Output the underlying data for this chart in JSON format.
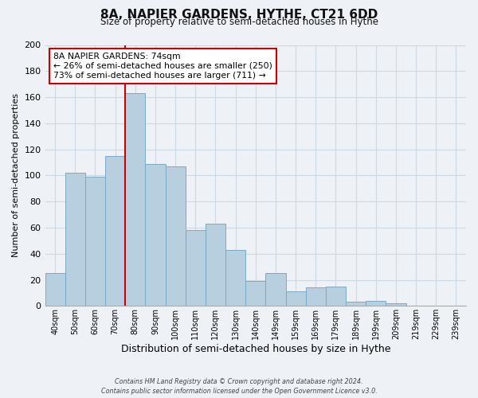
{
  "title": "8A, NAPIER GARDENS, HYTHE, CT21 6DD",
  "subtitle": "Size of property relative to semi-detached houses in Hythe",
  "xlabel": "Distribution of semi-detached houses by size in Hythe",
  "ylabel": "Number of semi-detached properties",
  "bar_labels": [
    "40sqm",
    "50sqm",
    "60sqm",
    "70sqm",
    "80sqm",
    "90sqm",
    "100sqm",
    "110sqm",
    "120sqm",
    "130sqm",
    "140sqm",
    "149sqm",
    "159sqm",
    "169sqm",
    "179sqm",
    "189sqm",
    "199sqm",
    "209sqm",
    "219sqm",
    "229sqm",
    "239sqm"
  ],
  "bar_values": [
    25,
    102,
    99,
    115,
    163,
    109,
    107,
    58,
    63,
    43,
    19,
    25,
    11,
    14,
    15,
    3,
    4,
    2,
    0,
    0,
    0
  ],
  "bar_color": "#b8cfe0",
  "bar_edge_color": "#7aaac8",
  "ylim": [
    0,
    200
  ],
  "yticks": [
    0,
    20,
    40,
    60,
    80,
    100,
    120,
    140,
    160,
    180,
    200
  ],
  "property_line_color": "#cc0000",
  "annotation_title": "8A NAPIER GARDENS: 74sqm",
  "annotation_line1": "← 26% of semi-detached houses are smaller (250)",
  "annotation_line2": "73% of semi-detached houses are larger (711) →",
  "annotation_box_color": "#ffffff",
  "annotation_box_edge": "#cc0000",
  "footer_line1": "Contains HM Land Registry data © Crown copyright and database right 2024.",
  "footer_line2": "Contains public sector information licensed under the Open Government Licence v3.0.",
  "grid_color": "#cdd8e3",
  "background_color": "#eef2f7"
}
